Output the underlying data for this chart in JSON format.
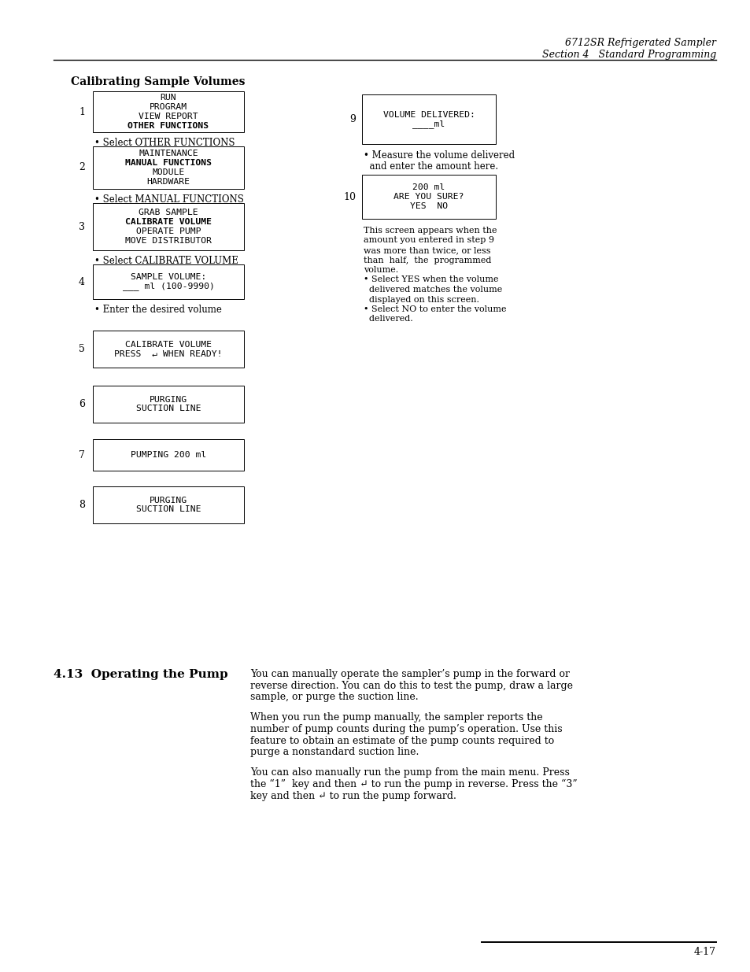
{
  "page_title_line1": "6712SR Refrigerated Sampler",
  "page_title_line2": "Section 4   Standard Programming",
  "section_heading": "Calibrating Sample Volumes",
  "left_column_items": [
    {
      "number": "1",
      "box_lines": [
        "RUN",
        "PROGRAM",
        "VIEW REPORT",
        "OTHER FUNCTIONS"
      ],
      "bold_lines": [
        "OTHER FUNCTIONS"
      ],
      "bullet": "• Select OTHER FUNCTIONS",
      "has_bullet": true
    },
    {
      "number": "2",
      "box_lines": [
        "MAINTENANCE",
        "MANUAL FUNCTIONS",
        "MODULE",
        "HARDWARE"
      ],
      "bold_lines": [
        "MANUAL FUNCTIONS"
      ],
      "bullet": "• Select MANUAL FUNCTIONS",
      "has_bullet": true
    },
    {
      "number": "3",
      "box_lines": [
        "GRAB SAMPLE",
        "CALIBRATE VOLUME",
        "OPERATE PUMP",
        "MOVE DISTRIBUTOR"
      ],
      "bold_lines": [
        "CALIBRATE VOLUME"
      ],
      "bullet": "• Select CALIBRATE VOLUME",
      "has_bullet": true
    },
    {
      "number": "4",
      "box_lines": [
        "SAMPLE VOLUME:",
        "___ ml (100-9990)"
      ],
      "bold_lines": [],
      "bullet": "• Enter the desired volume",
      "has_bullet": true
    },
    {
      "number": "5",
      "box_lines": [
        "CALIBRATE VOLUME",
        "PRESS  ↵ WHEN READY!"
      ],
      "bold_lines": [],
      "bullet": "",
      "has_bullet": false
    },
    {
      "number": "6",
      "box_lines": [
        "PURGING",
        "SUCTION LINE"
      ],
      "bold_lines": [],
      "bullet": "",
      "has_bullet": false
    },
    {
      "number": "7",
      "box_lines": [
        "PUMPING 200 ml"
      ],
      "bold_lines": [],
      "bullet": "",
      "has_bullet": false
    },
    {
      "number": "8",
      "box_lines": [
        "PURGING",
        "SUCTION LINE"
      ],
      "bold_lines": [],
      "bullet": "",
      "has_bullet": false
    }
  ],
  "box9_lines": [
    "VOLUME DELIVERED:",
    "____ml"
  ],
  "box9_bullet": "• Measure the volume delivered\n  and enter the amount here.",
  "box10_lines": [
    "200 ml",
    "ARE YOU SURE?",
    "YES  NO"
  ],
  "box10_sidetext_lines": [
    "This screen appears when the",
    "amount you entered in step 9",
    "was more than twice, or less",
    "than  half,  the  programmed",
    "volume.",
    "• Select YES when the volume",
    "  delivered matches the volume",
    "  displayed on this screen.",
    "• Select NO to enter the volume",
    "  delivered."
  ],
  "section_413_heading": "4.13  Operating the Pump",
  "section_413_para1_lines": [
    "You can manually operate the sampler’s pump in the forward or",
    "reverse direction. You can do this to test the pump, draw a large",
    "sample, or purge the suction line."
  ],
  "section_413_para2_lines": [
    "When you run the pump manually, the sampler reports the",
    "number of pump counts during the pump’s operation. Use this",
    "feature to obtain an estimate of the pump counts required to",
    "purge a nonstandard suction line."
  ],
  "section_413_para3_lines": [
    "You can also manually run the pump from the main menu. Press",
    "the “1”  key and then ↵ to run the pump in reverse. Press the “3”",
    "key and then ↵ to run the pump forward."
  ],
  "footer_text": "4-17",
  "bg_color": "#ffffff",
  "text_color": "#000000"
}
